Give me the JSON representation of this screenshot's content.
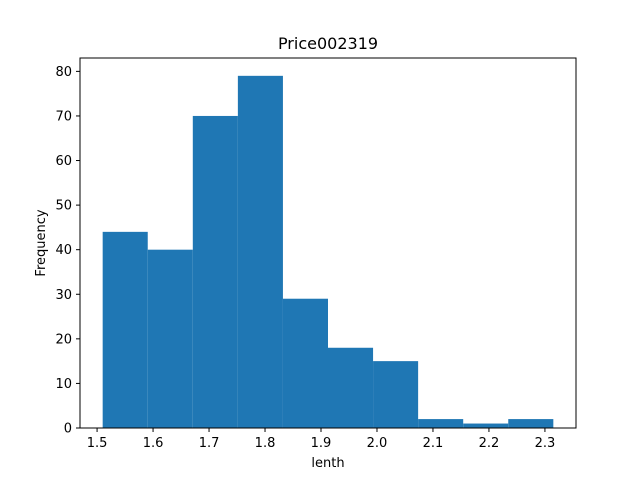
{
  "chart_data": {
    "type": "bar",
    "title": "Price002319",
    "xlabel": "lenth",
    "ylabel": "Frequency",
    "bin_edges": [
      1.51,
      1.5905,
      1.671,
      1.7515,
      1.832,
      1.9125,
      1.993,
      2.0735,
      2.154,
      2.2345,
      2.315
    ],
    "values": [
      44,
      40,
      70,
      79,
      29,
      18,
      15,
      2,
      1,
      2
    ],
    "xlim": [
      1.4695,
      2.3555
    ],
    "ylim": [
      0,
      83
    ],
    "xticks": [
      "1.5",
      "1.6",
      "1.7",
      "1.8",
      "1.9",
      "2.0",
      "2.1",
      "2.2",
      "2.3"
    ],
    "yticks": [
      "0",
      "10",
      "20",
      "30",
      "40",
      "50",
      "60",
      "70",
      "80"
    ],
    "grid": false,
    "bar_color": "#1f77b4"
  }
}
